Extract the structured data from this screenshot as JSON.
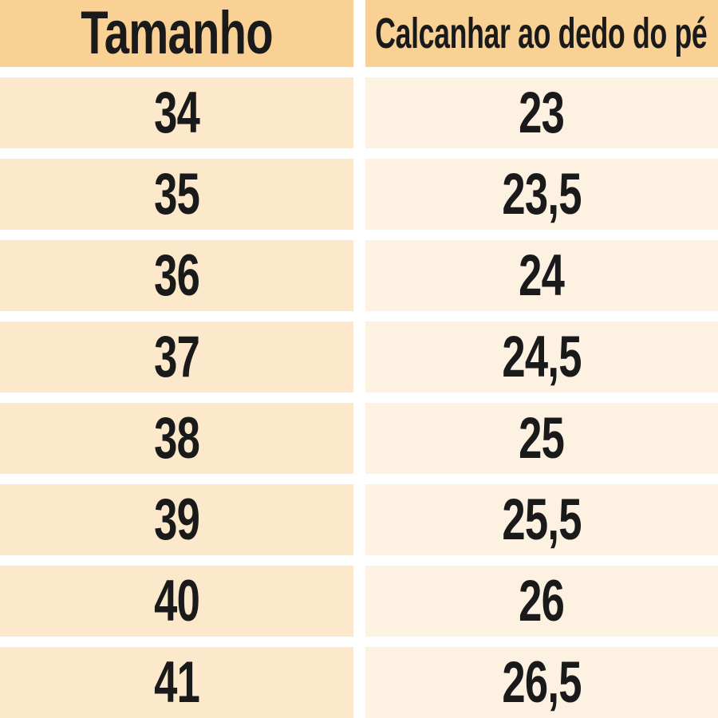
{
  "chart_data": {
    "type": "table",
    "columns": [
      "Tamanho",
      "Calcanhar ao dedo do pé"
    ],
    "rows": [
      [
        "34",
        "23"
      ],
      [
        "35",
        "23,5"
      ],
      [
        "36",
        "24"
      ],
      [
        "37",
        "24,5"
      ],
      [
        "38",
        "25"
      ],
      [
        "39",
        "25,5"
      ],
      [
        "40",
        "26"
      ],
      [
        "41",
        "26,5"
      ]
    ],
    "layout": {
      "header_row": true,
      "grid_lines": "white gutters between cells",
      "column_count": 2,
      "row_count": 8
    }
  },
  "colors": {
    "header_bg": "#fad194",
    "size_col_bg": "#fce8ca",
    "measure_col_bg": "#fdf1e2",
    "gap_color": "#ffffff",
    "text": "#1a1a1a"
  }
}
